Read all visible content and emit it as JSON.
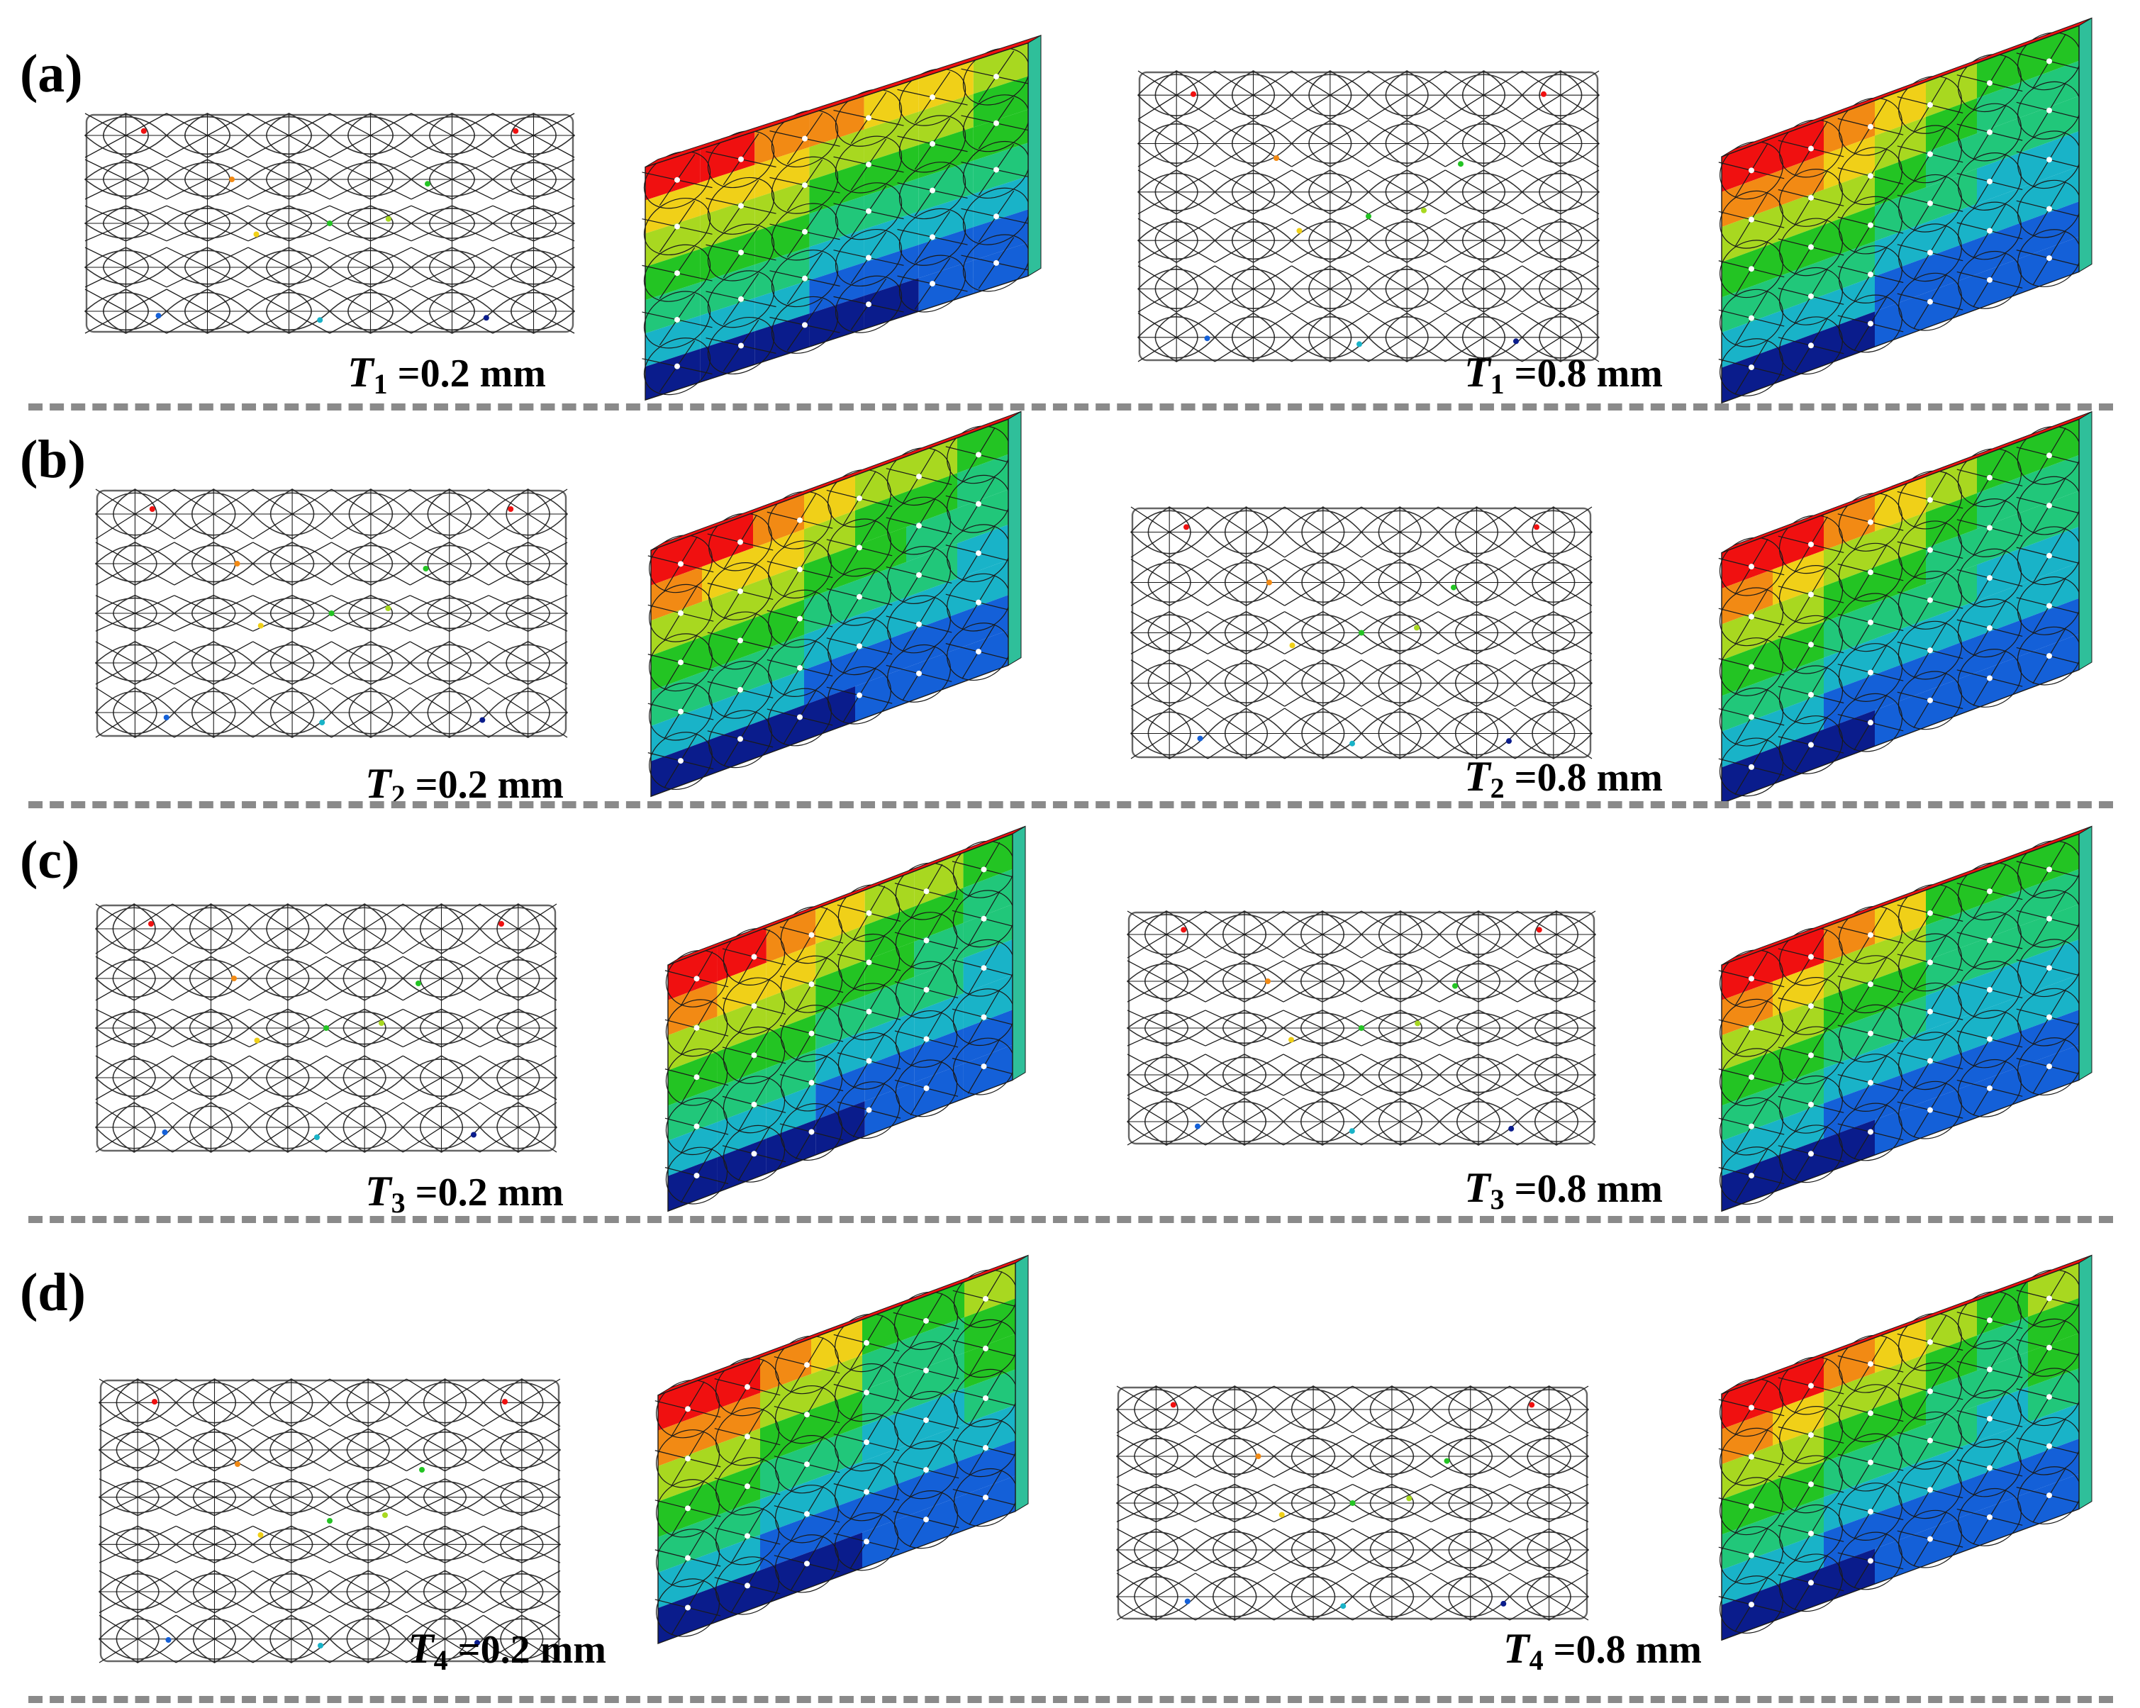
{
  "colors": {
    "contour": [
      "#0a1c8c",
      "#1460d8",
      "#19b3c8",
      "#21c77a",
      "#23c423",
      "#a8d820",
      "#f0d018",
      "#f28a14",
      "#f01010"
    ],
    "divider": "#8a8a8a",
    "line": "#1a1a1a"
  },
  "rows": [
    {
      "label": "(a)",
      "sub": "1",
      "left_value": "=0.2 mm",
      "right_value": "=0.8 mm"
    },
    {
      "label": "(b)",
      "sub": "2",
      "left_value": "=0.2 mm",
      "right_value": "=0.8 mm"
    },
    {
      "label": "(c)",
      "sub": "3",
      "left_value": "=0.2 mm",
      "right_value": "=0.8 mm"
    },
    {
      "label": "(d)",
      "sub": "4",
      "left_value": "=0.2 mm",
      "right_value": "=0.8 mm"
    }
  ],
  "symbol": "T"
}
